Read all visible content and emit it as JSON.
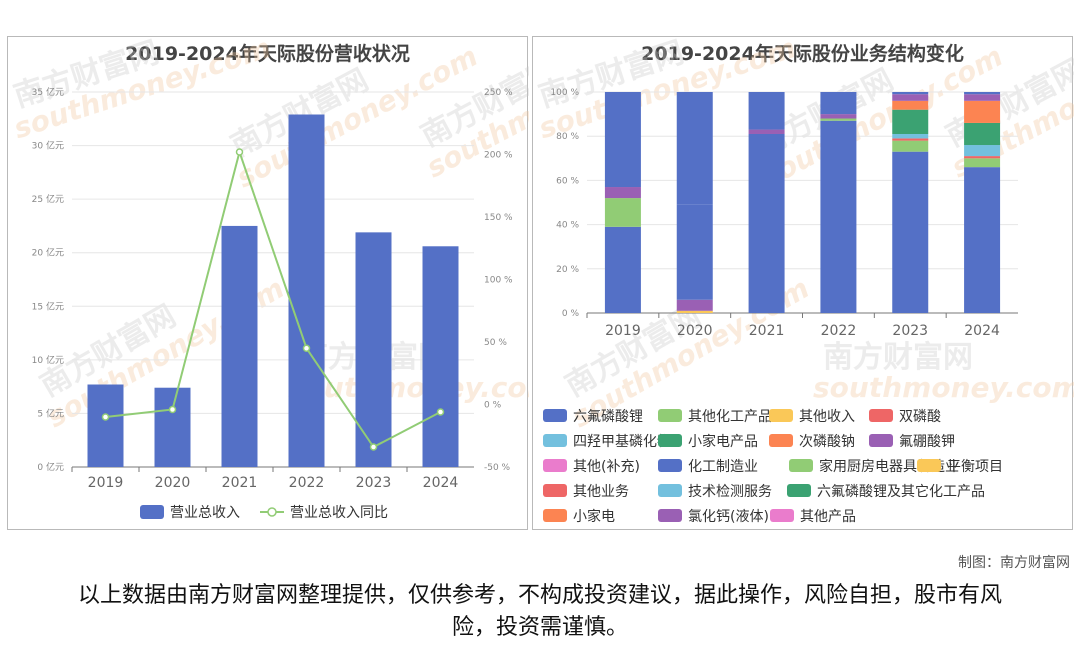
{
  "left_chart": {
    "title": "2019-2024年天际股份营收状况",
    "chart_data": {
      "type": "bar",
      "categories": [
        "2019",
        "2020",
        "2021",
        "2022",
        "2023",
        "2024"
      ],
      "series": [
        {
          "name": "营业总收入",
          "type": "bar",
          "values": [
            7.7,
            7.4,
            22.5,
            32.9,
            21.9,
            20.6
          ],
          "color": "#5470c6"
        },
        {
          "name": "营业总收入同比",
          "type": "line",
          "values": [
            -10,
            -4,
            202,
            45,
            -34,
            -6
          ],
          "color": "#91cc75"
        }
      ],
      "y_left": {
        "range": [
          0,
          35
        ],
        "ticks": [
          "0 亿元",
          "5 亿元",
          "10 亿元",
          "15 亿元",
          "20 亿元",
          "25 亿元",
          "30 亿元",
          "35 亿元"
        ]
      },
      "y_right": {
        "range": [
          -50,
          250
        ],
        "ticks": [
          "-50 %",
          "0 %",
          "50 %",
          "100 %",
          "150 %",
          "200 %",
          "250 %"
        ]
      },
      "legend": "bottom"
    }
  },
  "right_chart": {
    "title": "2019-2024年天际股份业务结构变化",
    "chart_data": {
      "type": "bar",
      "stacked": true,
      "categories": [
        "2019",
        "2020",
        "2021",
        "2022",
        "2023",
        "2024"
      ],
      "y_axis": {
        "range": [
          0,
          100
        ],
        "ticks": [
          "0 %",
          "20 %",
          "40 %",
          "60 %",
          "80 %",
          "100 %"
        ]
      },
      "series": [
        {
          "name": "六氟磷酸锂",
          "color": "#5470c6",
          "values": [
            39,
            0,
            0,
            0,
            0,
            0
          ]
        },
        {
          "name": "其他化工产品",
          "color": "#91cc75",
          "values": [
            13,
            0,
            0,
            0,
            0,
            0
          ]
        },
        {
          "name": "其他收入",
          "color": "#fac858",
          "values": [
            0,
            1,
            0,
            0,
            0,
            0
          ]
        },
        {
          "name": "双磷酸",
          "color": "#ee6666",
          "values": [
            0,
            0,
            0,
            0,
            0,
            0
          ]
        },
        {
          "name": "四羟甲基磷化物",
          "color": "#73c0de",
          "values": [
            0,
            0,
            0,
            0,
            0,
            0
          ]
        },
        {
          "name": "小家电产品",
          "color": "#3ba272",
          "values": [
            0,
            0,
            0,
            0,
            0,
            0
          ]
        },
        {
          "name": "次磷酸钠",
          "color": "#fc8452",
          "values": [
            0,
            0,
            0,
            0,
            0,
            0
          ]
        },
        {
          "name": "氟硼酸钾",
          "color": "#9a60b4",
          "values": [
            5,
            5,
            0,
            0,
            0,
            0
          ]
        },
        {
          "name": "其他(补充)",
          "color": "#ea7ccc",
          "values": [
            0,
            0,
            0,
            0,
            0,
            0
          ]
        },
        {
          "name": "化工制造业",
          "color": "#5470c6",
          "values": [
            43,
            43,
            81,
            87,
            73,
            66
          ]
        },
        {
          "name": "家用厨房电器具制造业",
          "color": "#91cc75",
          "values": [
            0,
            0,
            0,
            1,
            5,
            4
          ]
        },
        {
          "name": "平衡项目",
          "color": "#fac858",
          "values": [
            0,
            0,
            0,
            0,
            0,
            0
          ]
        },
        {
          "name": "其他业务",
          "color": "#ee6666",
          "values": [
            0,
            0,
            0,
            0,
            1,
            1
          ]
        },
        {
          "name": "技术检测服务",
          "color": "#73c0de",
          "values": [
            0,
            0,
            0,
            0,
            2,
            5
          ]
        },
        {
          "name": "六氟磷酸锂及其它化工产品",
          "color": "#3ba272",
          "values": [
            0,
            0,
            0,
            0,
            11,
            10
          ]
        },
        {
          "name": "小家电",
          "color": "#fc8452",
          "values": [
            0,
            0,
            0,
            0,
            4,
            10
          ]
        },
        {
          "name": "氯化钙(液体)",
          "color": "#9a60b4",
          "values": [
            0,
            0,
            2,
            2,
            3,
            3
          ]
        },
        {
          "name": "其他产品",
          "color": "#ea7ccc",
          "values": [
            0,
            0,
            0,
            0,
            0,
            0
          ]
        },
        {
          "name": "化工制造业",
          "color": "#5470c6",
          "values": [
            0,
            51,
            17,
            10,
            1,
            1
          ]
        }
      ],
      "legend_count": 18,
      "legend": "bottom"
    }
  },
  "watermark": {
    "cn": "南方财富网",
    "en": "southmoney.com"
  },
  "credit": "制图：南方财富网",
  "disclaimer": "以上数据由南方财富网整理提供，仅供参考，不构成投资建议，据此操作，风险自担，股市有风险，投资需谨慎。"
}
